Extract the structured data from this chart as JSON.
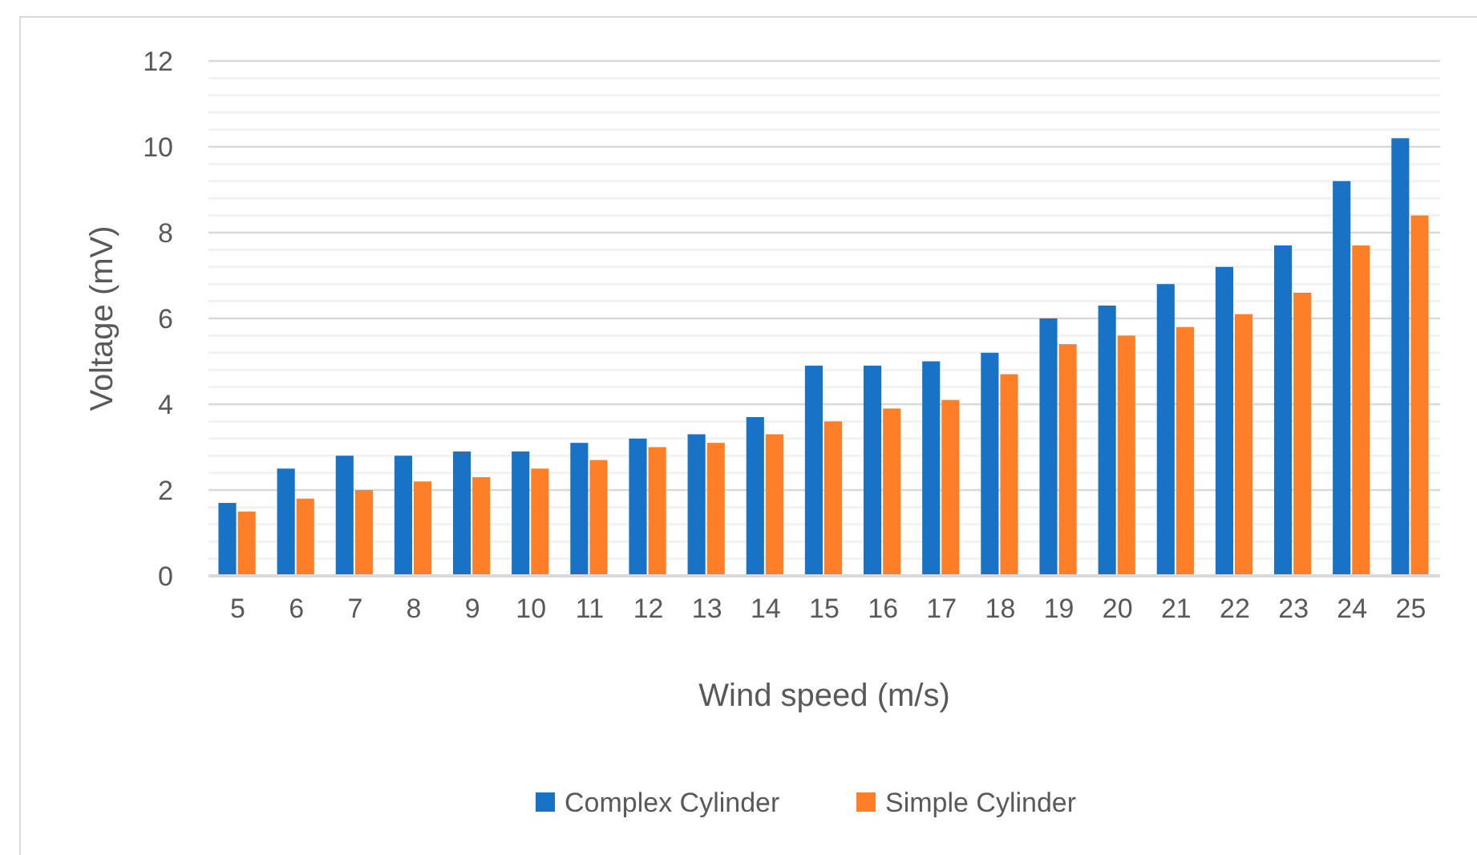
{
  "chart_data": {
    "type": "bar",
    "xlabel": "Wind speed (m/s)",
    "ylabel": "Voltage (mV)",
    "categories": [
      "5",
      "6",
      "7",
      "8",
      "9",
      "10",
      "11",
      "12",
      "13",
      "14",
      "15",
      "16",
      "17",
      "18",
      "19",
      "20",
      "21",
      "22",
      "23",
      "24",
      "25"
    ],
    "series": [
      {
        "name": "Complex Cylinder",
        "color": "#1872c6",
        "values": [
          1.7,
          2.5,
          2.8,
          2.8,
          2.9,
          2.9,
          3.1,
          3.2,
          3.3,
          3.7,
          4.9,
          4.9,
          5.0,
          5.2,
          6.0,
          6.3,
          6.8,
          7.2,
          7.7,
          9.2,
          10.2
        ]
      },
      {
        "name": "Simple Cylinder",
        "color": "#fe7f27",
        "values": [
          1.5,
          1.8,
          2.0,
          2.2,
          2.3,
          2.5,
          2.7,
          3.0,
          3.1,
          3.3,
          3.6,
          3.9,
          4.1,
          4.7,
          5.4,
          5.6,
          5.8,
          6.1,
          6.6,
          7.7,
          8.4
        ]
      }
    ],
    "ylim": [
      0,
      12
    ],
    "yticks": [
      0,
      {
        "value": 0.4,
        "label": null
      },
      {
        "value": 0.8,
        "label": null
      },
      {
        "value": 1.2,
        "label": null
      },
      {
        "value": 1.6,
        "label": null
      },
      2,
      {
        "value": 2.4,
        "label": null
      },
      {
        "value": 2.8,
        "label": null
      },
      {
        "value": 3.2,
        "label": null
      },
      {
        "value": 3.6,
        "label": null
      },
      4,
      {
        "value": 4.4,
        "label": null
      },
      {
        "value": 4.8,
        "label": null
      },
      {
        "value": 5.2,
        "label": null
      },
      {
        "value": 5.6,
        "label": null
      },
      6,
      {
        "value": 6.4,
        "label": null
      },
      {
        "value": 6.8,
        "label": null
      },
      {
        "value": 7.2,
        "label": null
      },
      {
        "value": 7.6,
        "label": null
      },
      8,
      {
        "value": 8.4,
        "label": null
      },
      {
        "value": 8.8,
        "label": null
      },
      {
        "value": 9.2,
        "label": null
      },
      {
        "value": 9.6,
        "label": null
      },
      10,
      {
        "value": 10.4,
        "label": null
      },
      {
        "value": 10.8,
        "label": null
      },
      {
        "value": 11.2,
        "label": null
      },
      {
        "value": 11.6,
        "label": null
      },
      12
    ],
    "grid": "y",
    "legend": "bottom"
  }
}
